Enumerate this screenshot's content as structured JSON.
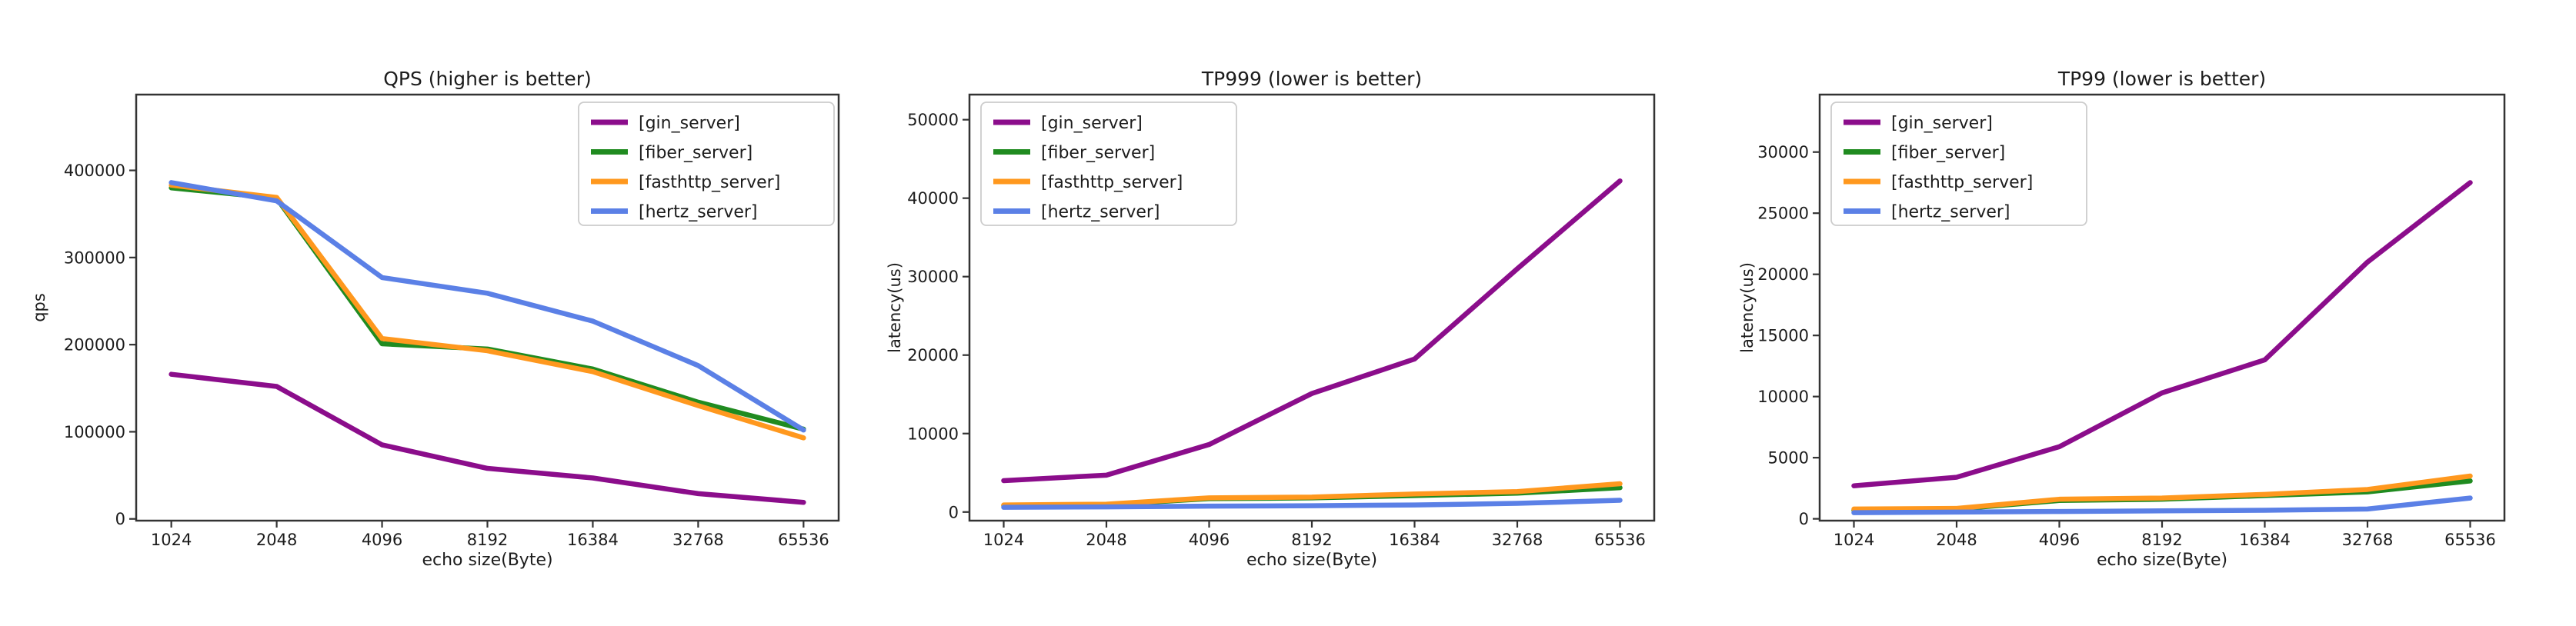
{
  "figure": {
    "background": "#ffffff",
    "kind": "matplotlib-benchmark-figure"
  },
  "colors": {
    "gin_server": "#8b0d8b",
    "fiber_server": "#208b20",
    "fasthttp_server": "#ff981e",
    "hertz_server": "#5b80e6",
    "axis_text": "#1c1c1c",
    "spine": "#333333",
    "legend_border": "#cccccc",
    "legend_background": "#ffffff"
  },
  "chart_data": [
    {
      "type": "line",
      "title": "QPS (higher is better)",
      "xlabel": "echo size(Byte)",
      "ylabel": "qps",
      "categories": [
        "1024",
        "2048",
        "4096",
        "8192",
        "16384",
        "32768",
        "65536"
      ],
      "grid": false,
      "legend_position": "upper right",
      "ylim": [
        -2000,
        487000
      ],
      "yticks": [
        0,
        100000,
        200000,
        300000,
        400000
      ],
      "series": [
        {
          "name": "[gin_server]",
          "color_key": "gin_server",
          "values": [
            166000,
            152000,
            85000,
            58000,
            47000,
            29000,
            19000
          ]
        },
        {
          "name": "[fiber_server]",
          "color_key": "fiber_server",
          "values": [
            380000,
            368000,
            201000,
            195000,
            172000,
            134000,
            103000
          ]
        },
        {
          "name": "[fasthttp_server]",
          "color_key": "fasthttp_server",
          "values": [
            383000,
            369000,
            207000,
            193000,
            169000,
            130000,
            93000
          ]
        },
        {
          "name": "[hertz_server]",
          "color_key": "hertz_server",
          "values": [
            386000,
            365000,
            277000,
            259000,
            227000,
            176000,
            102000
          ]
        }
      ]
    },
    {
      "type": "line",
      "title": "TP999 (lower is better)",
      "xlabel": "echo size(Byte)",
      "ylabel": "latency(us)",
      "categories": [
        "1024",
        "2048",
        "4096",
        "8192",
        "16384",
        "32768",
        "65536"
      ],
      "grid": false,
      "legend_position": "upper left",
      "ylim": [
        -1100,
        53200
      ],
      "yticks": [
        0,
        10000,
        20000,
        30000,
        40000,
        50000
      ],
      "series": [
        {
          "name": "[gin_server]",
          "color_key": "gin_server",
          "values": [
            4000,
            4700,
            8600,
            15100,
            19500,
            31000,
            42200
          ]
        },
        {
          "name": "[fiber_server]",
          "color_key": "fiber_server",
          "values": [
            800,
            950,
            1700,
            1800,
            2100,
            2400,
            3100
          ]
        },
        {
          "name": "[fasthttp_server]",
          "color_key": "fasthttp_server",
          "values": [
            900,
            1000,
            1800,
            1900,
            2300,
            2600,
            3600
          ]
        },
        {
          "name": "[hertz_server]",
          "color_key": "hertz_server",
          "values": [
            600,
            650,
            750,
            800,
            900,
            1100,
            1500
          ]
        }
      ]
    },
    {
      "type": "line",
      "title": "TP99 (lower is better)",
      "xlabel": "echo size(Byte)",
      "ylabel": "latency(us)",
      "categories": [
        "1024",
        "2048",
        "4096",
        "8192",
        "16384",
        "32768",
        "65536"
      ],
      "grid": false,
      "legend_position": "upper left",
      "ylim": [
        -150,
        34700
      ],
      "yticks": [
        0,
        5000,
        10000,
        15000,
        20000,
        25000,
        30000
      ],
      "series": [
        {
          "name": "[gin_server]",
          "color_key": "gin_server",
          "values": [
            2700,
            3400,
            5900,
            10300,
            13000,
            21000,
            27500
          ]
        },
        {
          "name": "[fiber_server]",
          "color_key": "fiber_server",
          "values": [
            700,
            800,
            1500,
            1600,
            1900,
            2200,
            3100
          ]
        },
        {
          "name": "[fasthttp_server]",
          "color_key": "fasthttp_server",
          "values": [
            800,
            850,
            1600,
            1700,
            2000,
            2400,
            3500
          ]
        },
        {
          "name": "[hertz_server]",
          "color_key": "hertz_server",
          "values": [
            500,
            550,
            600,
            650,
            700,
            800,
            1700
          ]
        }
      ]
    }
  ]
}
